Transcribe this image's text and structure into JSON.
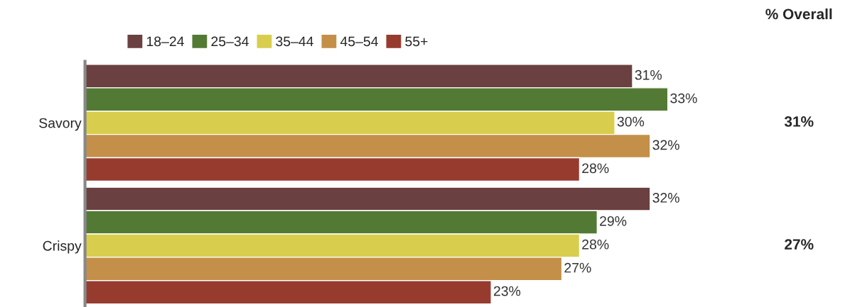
{
  "chart_data": {
    "type": "bar",
    "orientation": "horizontal",
    "categories": [
      "Savory",
      "Crispy"
    ],
    "series": [
      {
        "name": "18–24",
        "color": "#6b4040",
        "values": [
          31,
          32
        ],
        "value_labels": [
          "31%",
          "32%"
        ]
      },
      {
        "name": "25–34",
        "color": "#537a35",
        "values": [
          33,
          29
        ],
        "value_labels": [
          "33%",
          "29%"
        ]
      },
      {
        "name": "35–44",
        "color": "#d9cd4e",
        "values": [
          30,
          28
        ],
        "value_labels": [
          "30%",
          "28%"
        ]
      },
      {
        "name": "45–54",
        "color": "#c48f48",
        "values": [
          32,
          27
        ],
        "value_labels": [
          "32%",
          "27%"
        ]
      },
      {
        "name": "55+",
        "color": "#973b2f",
        "values": [
          28,
          23
        ],
        "value_labels": [
          "28%",
          "23%"
        ]
      }
    ],
    "tick_labels": "y",
    "grid": false,
    "legend": "top left",
    "annotations": [
      "% Overall",
      "31%",
      "27%"
    ]
  }
}
